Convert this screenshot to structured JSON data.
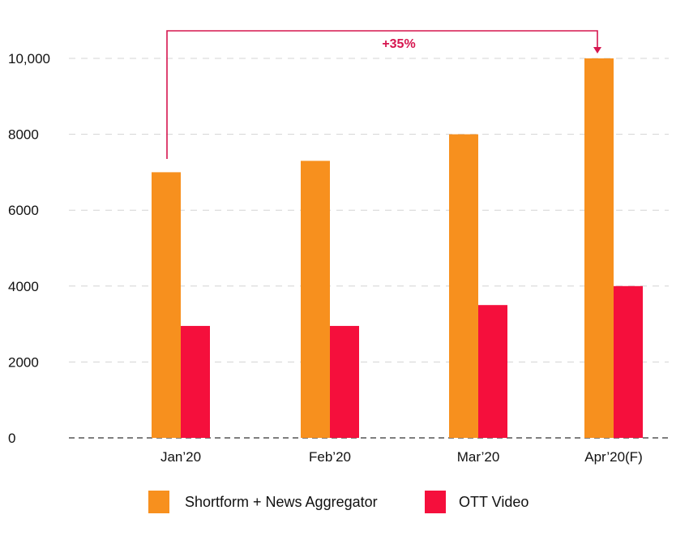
{
  "chart_data": {
    "type": "bar",
    "categories": [
      "Jan’20",
      "Feb’20",
      "Mar’20",
      "Apr’20(F)"
    ],
    "series": [
      {
        "name": "Shortform + News Aggregator",
        "values": [
          7000,
          7300,
          8000,
          10000
        ],
        "color": "#f7901e"
      },
      {
        "name": "OTT Video",
        "values": [
          2950,
          2950,
          3500,
          4000
        ],
        "color": "#f50f3c"
      }
    ],
    "ylim": [
      0,
      10000
    ],
    "yticks": [
      0,
      2000,
      4000,
      6000,
      8000,
      10000
    ],
    "ytick_labels": [
      "0",
      "2000",
      "4000",
      "6000",
      "8000",
      "10,000"
    ],
    "grid": true,
    "legend_position": "bottom",
    "annotation": {
      "text": "+35%",
      "from_category": 0,
      "to_category": 3,
      "color": "#d6164f"
    }
  }
}
